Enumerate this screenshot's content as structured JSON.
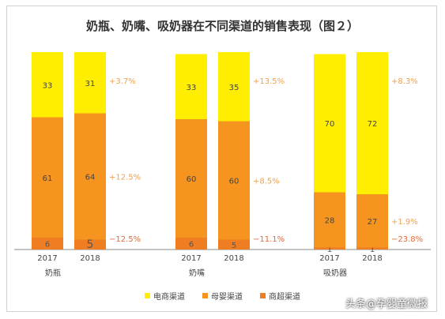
{
  "title": "奶瓶、奶嘴、吸奶器在不同渠道的销售表现（图２）",
  "chart_data": {
    "type": "bar",
    "stacked": true,
    "groups": [
      {
        "name": "奶瓶",
        "years": [
          "2017",
          "2018"
        ],
        "bars": [
          {
            "year": "2017",
            "segments": [
              6,
              61,
              33
            ]
          },
          {
            "year": "2018",
            "segments": [
              5,
              64,
              31
            ]
          }
        ],
        "changes": [
          "−12.5%",
          "+12.5%",
          "+3.7%"
        ]
      },
      {
        "name": "奶嘴",
        "years": [
          "2017",
          "2018"
        ],
        "bars": [
          {
            "year": "2017",
            "segments": [
              6,
              60,
              33
            ]
          },
          {
            "year": "2018",
            "segments": [
              5,
              60,
              35
            ]
          }
        ],
        "changes": [
          "−11.1%",
          "+8.5%",
          "+13.5%"
        ]
      },
      {
        "name": "吸奶器",
        "years": [
          "2017",
          "2018"
        ],
        "bars": [
          {
            "year": "2017",
            "segments": [
              1,
              28,
              70
            ]
          },
          {
            "year": "2018",
            "segments": [
              1,
              27,
              72
            ]
          }
        ],
        "changes": [
          "−23.8%",
          "+1.9%",
          "+8.3%"
        ]
      }
    ],
    "series": [
      {
        "name": "商超渠道",
        "color": "#ef7d22"
      },
      {
        "name": "母婴渠道",
        "color": "#f5951f"
      },
      {
        "name": "电商渠道",
        "color": "#ffee00"
      }
    ],
    "legend_order": [
      2,
      1,
      0
    ],
    "ylim": [
      0,
      100
    ],
    "legend_position": "bottom"
  },
  "watermark": "头条@孕婴童微报"
}
